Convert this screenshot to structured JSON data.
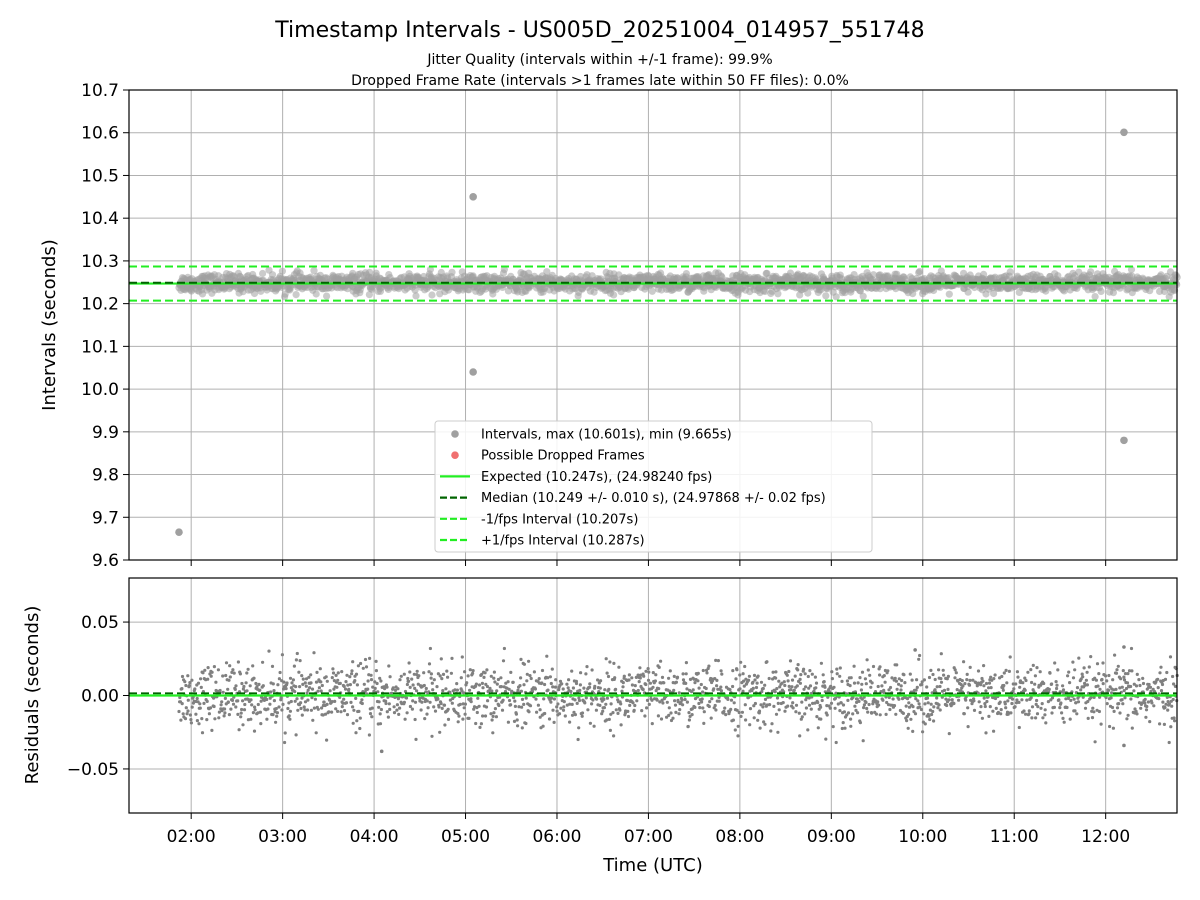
{
  "header": {
    "title": "Timestamp Intervals - US005D_20251004_014957_551748",
    "subtitle_1": "Jitter Quality (intervals within +/-1 frame): 99.9%",
    "subtitle_2": "Dropped Frame Rate (intervals >1 frames late within 50 FF files): 0.0%"
  },
  "chart_data": [
    {
      "type": "scatter",
      "ylabel": "Intervals (seconds)",
      "xlim_hours": [
        1.32,
        12.78
      ],
      "ylim": [
        9.6,
        10.7
      ],
      "yticks": [
        9.6,
        9.7,
        9.8,
        9.9,
        10.0,
        10.1,
        10.2,
        10.3,
        10.4,
        10.5,
        10.6,
        10.7
      ],
      "ytick_labels": [
        "9.6",
        "9.7",
        "9.8",
        "9.9",
        "10.0",
        "10.1",
        "10.2",
        "10.3",
        "10.4",
        "10.5",
        "10.6",
        "10.7"
      ],
      "grid": true,
      "legend_position": "lower center",
      "outliers": [
        {
          "x": "01:52",
          "y": 9.665
        },
        {
          "x": "05:05",
          "y": 10.45
        },
        {
          "x": "05:05",
          "y": 10.04
        },
        {
          "x": "12:12",
          "y": 10.601
        },
        {
          "x": "12:12",
          "y": 9.88
        }
      ],
      "bulk": {
        "x_range": [
          "01:52",
          "12:47"
        ],
        "center": 10.248,
        "spread": 0.03
      },
      "reference_lines": {
        "expected": 10.247,
        "median": 10.249,
        "minus_1fps": 10.207,
        "plus_1fps": 10.287
      },
      "legend": [
        {
          "label": "Intervals, max (10.601s), min (9.665s)",
          "kind": "marker",
          "color": "#a0a0a0"
        },
        {
          "label": "Possible Dropped Frames",
          "kind": "marker",
          "color": "#f07070"
        },
        {
          "label": "Expected (10.247s), (24.98240 fps)",
          "kind": "solid",
          "color": "#22ee22"
        },
        {
          "label": "Median (10.249 +/- 0.010 s), (24.97868 +/- 0.02 fps)",
          "kind": "dashed",
          "color": "#006400"
        },
        {
          "label": "-1/fps Interval (10.207s)",
          "kind": "dashed",
          "color": "#22ee22"
        },
        {
          "label": "+1/fps Interval (10.287s)",
          "kind": "dashed",
          "color": "#22ee22"
        }
      ]
    },
    {
      "type": "scatter",
      "ylabel": "Residuals (seconds)",
      "xlabel": "Time (UTC)",
      "xlim_hours": [
        1.32,
        12.78
      ],
      "ylim": [
        -0.08,
        0.08
      ],
      "yticks": [
        -0.05,
        0.0,
        0.05
      ],
      "ytick_labels": [
        "−0.05",
        "0.00",
        "0.05"
      ],
      "xticks": [
        "02:00",
        "03:00",
        "04:00",
        "05:00",
        "06:00",
        "07:00",
        "08:00",
        "09:00",
        "10:00",
        "11:00",
        "12:00"
      ],
      "grid": true,
      "zero_line": 0.0,
      "median_offset": 0.0015,
      "residual_spread": 0.03,
      "extremes": [
        {
          "x": "04:05",
          "y": -0.038
        },
        {
          "x": "12:12",
          "y": 0.033
        },
        {
          "x": "12:12",
          "y": -0.034
        },
        {
          "x": "09:55",
          "y": 0.031
        }
      ]
    }
  ],
  "colors": {
    "points": "#808080",
    "points_top": "#a0a0a0",
    "expected": "#22ee22",
    "median": "#006400",
    "grid": "#b0b0b0"
  }
}
